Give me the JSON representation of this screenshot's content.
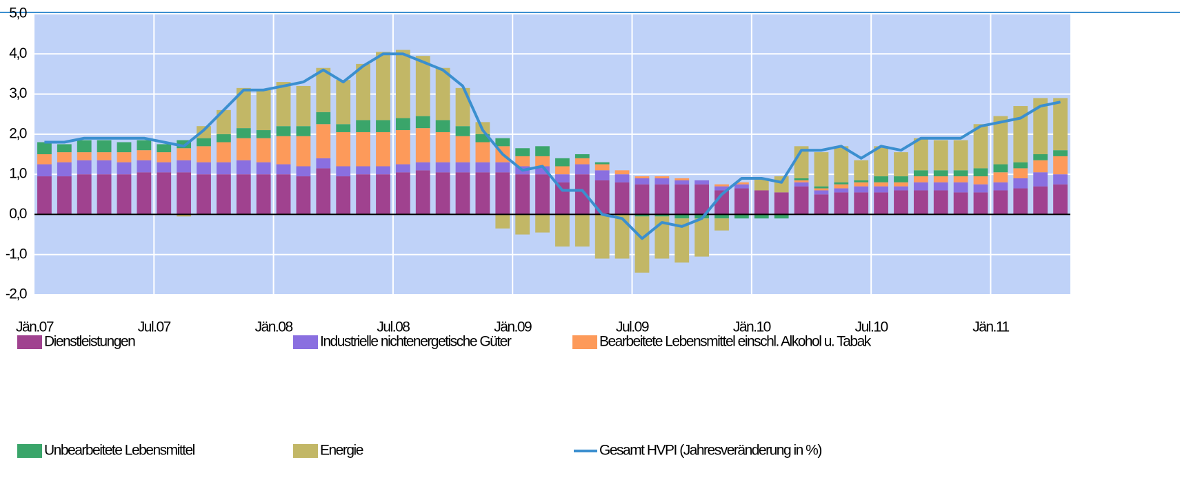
{
  "chart_data": {
    "type": "bar",
    "stacked": true,
    "categories": [
      "Jän.07",
      null,
      null,
      null,
      null,
      null,
      "Jul.07",
      null,
      null,
      null,
      null,
      null,
      "Jän.08",
      null,
      null,
      null,
      null,
      null,
      "Jul.08",
      null,
      null,
      null,
      null,
      null,
      "Jän.09",
      null,
      null,
      null,
      null,
      null,
      "Jul.09",
      null,
      null,
      null,
      null,
      null,
      "Jän.10",
      null,
      null,
      null,
      null,
      null,
      "Jul.10",
      null,
      null,
      null,
      null,
      null,
      "Jän.11",
      null,
      null,
      null
    ],
    "series": [
      {
        "name": "Dienstleistungen",
        "color": "#a0428f",
        "values": [
          0.95,
          0.95,
          1.0,
          1.0,
          1.0,
          1.05,
          1.05,
          1.05,
          1.0,
          1.0,
          1.0,
          1.0,
          1.0,
          0.95,
          1.15,
          0.95,
          1.0,
          1.0,
          1.05,
          1.1,
          1.05,
          1.05,
          1.05,
          1.05,
          1.0,
          1.0,
          0.8,
          1.0,
          0.85,
          0.8,
          0.75,
          0.75,
          0.75,
          0.75,
          0.6,
          0.65,
          0.6,
          0.55,
          0.7,
          0.5,
          0.55,
          0.55,
          0.55,
          0.6,
          0.6,
          0.6,
          0.55,
          0.55,
          0.6,
          0.65,
          0.7,
          0.75
        ]
      },
      {
        "name": "Industrielle nichtenergetische Güter",
        "color": "#8a6fe0",
        "values": [
          0.3,
          0.35,
          0.35,
          0.35,
          0.3,
          0.3,
          0.25,
          0.3,
          0.3,
          0.3,
          0.35,
          0.3,
          0.25,
          0.25,
          0.25,
          0.25,
          0.2,
          0.2,
          0.2,
          0.2,
          0.25,
          0.25,
          0.25,
          0.25,
          0.2,
          0.2,
          0.2,
          0.25,
          0.25,
          0.2,
          0.15,
          0.15,
          0.1,
          0.1,
          0.1,
          0.1,
          0,
          0,
          0.1,
          0.1,
          0.1,
          0.15,
          0.15,
          0.1,
          0.2,
          0.2,
          0.25,
          0.2,
          0.2,
          0.25,
          0.35,
          0.25
        ]
      },
      {
        "name": "Bearbeitete Lebensmittel einschl. Alkohol u. Tabak",
        "color": "#fd9a5a",
        "values": [
          0.25,
          0.25,
          0.2,
          0.2,
          0.25,
          0.25,
          0.25,
          0.3,
          0.4,
          0.5,
          0.55,
          0.6,
          0.7,
          0.75,
          0.85,
          0.85,
          0.85,
          0.85,
          0.85,
          0.85,
          0.75,
          0.65,
          0.5,
          0.4,
          0.25,
          0.25,
          0.2,
          0.15,
          0.15,
          0.1,
          0.05,
          0.05,
          0.05,
          0,
          0.05,
          0.05,
          0,
          0,
          0.05,
          0.05,
          0.1,
          0.1,
          0.1,
          0.1,
          0.15,
          0.15,
          0.15,
          0.2,
          0.25,
          0.25,
          0.3,
          0.45
        ]
      },
      {
        "name": "Unbearbeitete Lebensmittel",
        "color": "#3aa56a",
        "values": [
          0.3,
          0.2,
          0.3,
          0.3,
          0.25,
          0.25,
          0.2,
          0.2,
          0.2,
          0.2,
          0.25,
          0.2,
          0.25,
          0.25,
          0.3,
          0.2,
          0.3,
          0.3,
          0.3,
          0.3,
          0.3,
          0.25,
          0.2,
          0.2,
          0.2,
          0.25,
          0.2,
          0.1,
          0.05,
          0,
          -0.05,
          -0.05,
          -0.1,
          -0.1,
          -0.1,
          -0.1,
          -0.1,
          -0.1,
          0.05,
          0.05,
          0.05,
          0.05,
          0.15,
          0.15,
          0.15,
          0.15,
          0.15,
          0.2,
          0.2,
          0.15,
          0.15,
          0.15
        ]
      },
      {
        "name": "Energie",
        "color": "#c2b766",
        "values": [
          0,
          0,
          0,
          0,
          0,
          0,
          0,
          -0.05,
          0.3,
          0.6,
          1.0,
          1.0,
          1.1,
          1.0,
          1.1,
          1.1,
          1.4,
          1.7,
          1.7,
          1.5,
          1.3,
          0.95,
          0.3,
          -0.35,
          -0.5,
          -0.45,
          -0.8,
          -0.8,
          -1.1,
          -1.1,
          -1.4,
          -1.05,
          -1.1,
          -0.95,
          -0.3,
          0,
          0.3,
          0.4,
          0.8,
          0.85,
          0.9,
          0.5,
          0.75,
          0.6,
          0.8,
          0.75,
          0.75,
          1.1,
          1.2,
          1.4,
          1.4,
          1.3
        ]
      },
      {
        "name": "Gesamt HVPI (Jahresveränderung in %)",
        "color": "#3b8fcf",
        "type": "line",
        "values": [
          1.8,
          1.8,
          1.9,
          1.9,
          1.9,
          1.9,
          1.8,
          1.7,
          2.1,
          2.6,
          3.1,
          3.1,
          3.2,
          3.3,
          3.6,
          3.3,
          3.7,
          4.0,
          4.0,
          3.8,
          3.6,
          3.2,
          2.1,
          1.5,
          1.1,
          1.2,
          0.6,
          0.6,
          0.0,
          -0.1,
          -0.6,
          -0.2,
          -0.3,
          -0.1,
          0.5,
          0.9,
          0.9,
          0.8,
          1.6,
          1.6,
          1.7,
          1.4,
          1.7,
          1.6,
          1.9,
          1.9,
          1.9,
          2.2,
          2.3,
          2.4,
          2.7,
          2.8
        ]
      }
    ],
    "ylim": [
      -2,
      5
    ],
    "yticks": [
      {
        "value": -2,
        "label": "-2,0"
      },
      {
        "value": -1,
        "label": "-1,0"
      },
      {
        "value": 0,
        "label": "0,0"
      },
      {
        "value": 1,
        "label": "1,0"
      },
      {
        "value": 2,
        "label": "2,0"
      },
      {
        "value": 3,
        "label": "3,0"
      },
      {
        "value": 4,
        "label": "4,0"
      },
      {
        "value": 5,
        "label": "5,0"
      }
    ],
    "grid": true
  }
}
